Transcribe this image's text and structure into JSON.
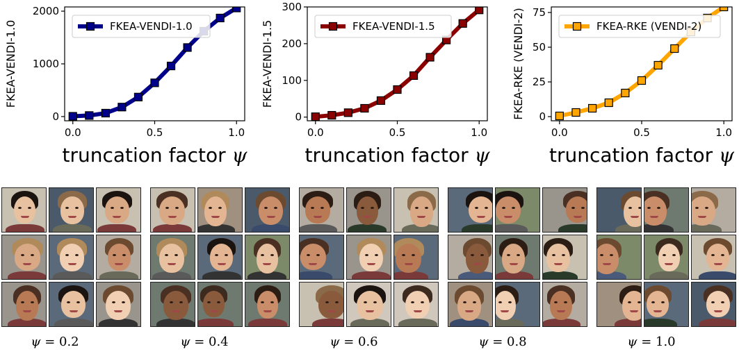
{
  "chart_data": [
    {
      "type": "line",
      "x": [
        0.0,
        0.1,
        0.2,
        0.3,
        0.4,
        0.5,
        0.6,
        0.7,
        0.8,
        0.9,
        1.0
      ],
      "series": [
        {
          "name": "FKEA-VENDI-1.0",
          "values": [
            5,
            20,
            65,
            180,
            370,
            640,
            960,
            1310,
            1620,
            1870,
            2060
          ],
          "color": "#00008b",
          "marker_fill": "#00008b"
        }
      ],
      "xlabel": "truncation factor ψ",
      "ylabel": "FKEA-VENDI-1.0",
      "xlim": [
        -0.05,
        1.05
      ],
      "ylim": [
        -80,
        2080
      ],
      "xticks": [
        0.0,
        0.5,
        1.0
      ],
      "xtick_labels": [
        "0.0",
        "0.5",
        "1.0"
      ],
      "yticks": [
        0,
        1000,
        2000
      ],
      "ytick_labels": [
        "0",
        "1000",
        "2000"
      ],
      "legend": "top-left"
    },
    {
      "type": "line",
      "x": [
        0.0,
        0.1,
        0.2,
        0.3,
        0.4,
        0.5,
        0.6,
        0.7,
        0.8,
        0.9,
        1.0
      ],
      "series": [
        {
          "name": "FKEA-VENDI-1.5",
          "values": [
            1,
            5,
            12,
            24,
            45,
            75,
            113,
            163,
            210,
            255,
            292
          ],
          "color": "#8b0000",
          "marker_fill": "#8b0000"
        }
      ],
      "xlabel": "truncation factor ψ",
      "ylabel": "FKEA-VENDI-1.5",
      "xlim": [
        -0.05,
        1.05
      ],
      "ylim": [
        -10,
        300
      ],
      "xticks": [
        0.0,
        0.5,
        1.0
      ],
      "xtick_labels": [
        "0.0",
        "0.5",
        "1.0"
      ],
      "yticks": [
        0,
        100,
        200,
        300
      ],
      "ytick_labels": [
        "0",
        "100",
        "200",
        "300"
      ],
      "legend": "top-left"
    },
    {
      "type": "line",
      "x": [
        0.0,
        0.1,
        0.2,
        0.3,
        0.4,
        0.5,
        0.6,
        0.7,
        0.8,
        0.9,
        1.0
      ],
      "series": [
        {
          "name": "FKEA-RKE (VENDI-2)",
          "values": [
            0.5,
            3,
            6,
            10,
            17,
            26,
            37,
            49,
            61,
            71,
            79
          ],
          "color": "#ffa500",
          "marker_fill": "#ffa500"
        }
      ],
      "xlabel": "truncation factor ψ",
      "ylabel": "FKEA-RKE (VENDI-2)",
      "xlim": [
        -0.05,
        1.05
      ],
      "ylim": [
        -3,
        79
      ],
      "xticks": [
        0.0,
        0.5,
        1.0
      ],
      "xtick_labels": [
        "0.0",
        "0.5",
        "1.0"
      ],
      "yticks": [
        0,
        25,
        50,
        75
      ],
      "ytick_labels": [
        "0",
        "25",
        "50",
        "75"
      ],
      "legend": "top-left"
    }
  ],
  "image_groups": [
    {
      "caption_symbol": "ψ",
      "caption_value": "= 0.2"
    },
    {
      "caption_symbol": "ψ",
      "caption_value": "= 0.4"
    },
    {
      "caption_symbol": "ψ",
      "caption_value": "= 0.6"
    },
    {
      "caption_symbol": "ψ",
      "caption_value": "= 0.8"
    },
    {
      "caption_symbol": "ψ",
      "caption_value": "= 1.0"
    }
  ]
}
